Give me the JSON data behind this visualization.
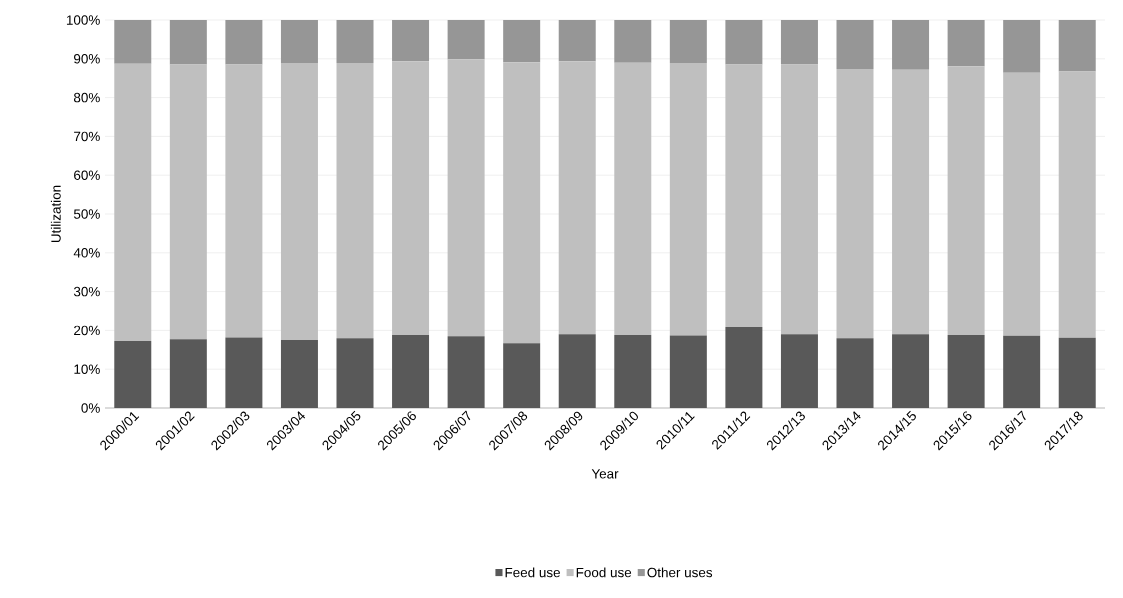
{
  "chart_data": {
    "type": "bar",
    "stacked": true,
    "xlabel": "Year",
    "ylabel": "Utilization",
    "categories": [
      "2000/01",
      "2001/02",
      "2002/03",
      "2003/04",
      "2004/05",
      "2005/06",
      "2006/07",
      "2007/08",
      "2008/09",
      "2009/10",
      "2010/11",
      "2011/12",
      "2012/13",
      "2013/14",
      "2014/15",
      "2015/16",
      "2016/17",
      "2017/18"
    ],
    "series": [
      {
        "name": "Feed use",
        "color": "#595959",
        "values": [
          17.3,
          17.7,
          18.2,
          17.5,
          18.0,
          18.8,
          18.5,
          16.7,
          19.0,
          18.8,
          18.7,
          20.9,
          19.0,
          18.0,
          19.0,
          18.8,
          18.6,
          18.1
        ]
      },
      {
        "name": "Food use",
        "color": "#bfbfbf",
        "values": [
          71.4,
          70.8,
          70.3,
          71.4,
          70.9,
          70.6,
          71.4,
          72.4,
          70.4,
          70.2,
          70.2,
          67.6,
          69.5,
          69.4,
          68.2,
          69.3,
          67.8,
          68.6
        ]
      },
      {
        "name": "Other uses",
        "color": "#969696",
        "values": [
          11.3,
          11.5,
          11.5,
          11.1,
          11.1,
          10.6,
          10.1,
          10.9,
          10.6,
          11.0,
          11.1,
          11.5,
          11.5,
          12.6,
          12.8,
          11.9,
          13.6,
          13.3
        ]
      }
    ],
    "ylim": [
      0,
      100
    ],
    "yticks": [
      {
        "value": 0,
        "label": "0%"
      },
      {
        "value": 10,
        "label": "10%"
      },
      {
        "value": 20,
        "label": "20%"
      },
      {
        "value": 30,
        "label": "30%"
      },
      {
        "value": 40,
        "label": "40%"
      },
      {
        "value": 50,
        "label": "50%"
      },
      {
        "value": 60,
        "label": "60%"
      },
      {
        "value": 70,
        "label": "70%"
      },
      {
        "value": 80,
        "label": "80%"
      },
      {
        "value": 90,
        "label": "90%"
      },
      {
        "value": 100,
        "label": "100%"
      }
    ],
    "grid": "y",
    "legend": "bottom"
  }
}
